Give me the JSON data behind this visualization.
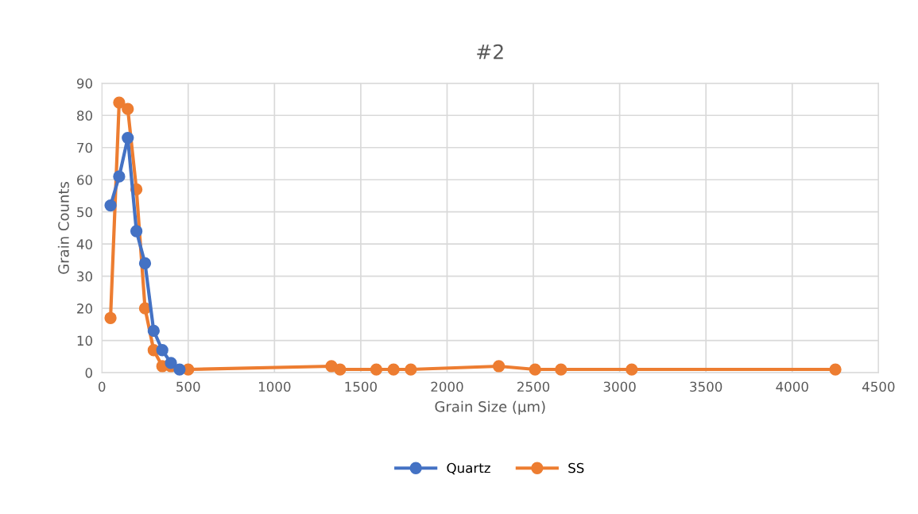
{
  "chart_data": {
    "type": "line",
    "title": "#2",
    "xlabel": "Grain Size (µm)",
    "ylabel": "Grain Counts",
    "xlim": [
      0,
      4500
    ],
    "xticks": [
      0,
      500,
      1000,
      1500,
      2000,
      2500,
      3000,
      3500,
      4000,
      4500
    ],
    "ylim": [
      0,
      90
    ],
    "yticks": [
      0,
      10,
      20,
      30,
      40,
      50,
      60,
      70,
      80,
      90
    ],
    "grid": true,
    "legend": "bottom",
    "marker": "circle",
    "line_style": "solid",
    "series": [
      {
        "name": "Quartz",
        "color": "#4472c4",
        "x": [
          50,
          100,
          150,
          200,
          250,
          300,
          350,
          400,
          450
        ],
        "values": [
          52,
          61,
          73,
          44,
          34,
          13,
          7,
          3,
          1
        ]
      },
      {
        "name": "SS",
        "color": "#ed7d31",
        "x": [
          50,
          100,
          150,
          200,
          250,
          300,
          350,
          400,
          500,
          1330,
          1380,
          1590,
          1690,
          1790,
          2300,
          2510,
          2660,
          3070,
          4250
        ],
        "values": [
          17,
          84,
          82,
          57,
          20,
          7,
          2,
          2,
          1,
          2,
          1,
          1,
          1,
          1,
          2,
          1,
          1,
          1,
          1
        ]
      }
    ]
  }
}
